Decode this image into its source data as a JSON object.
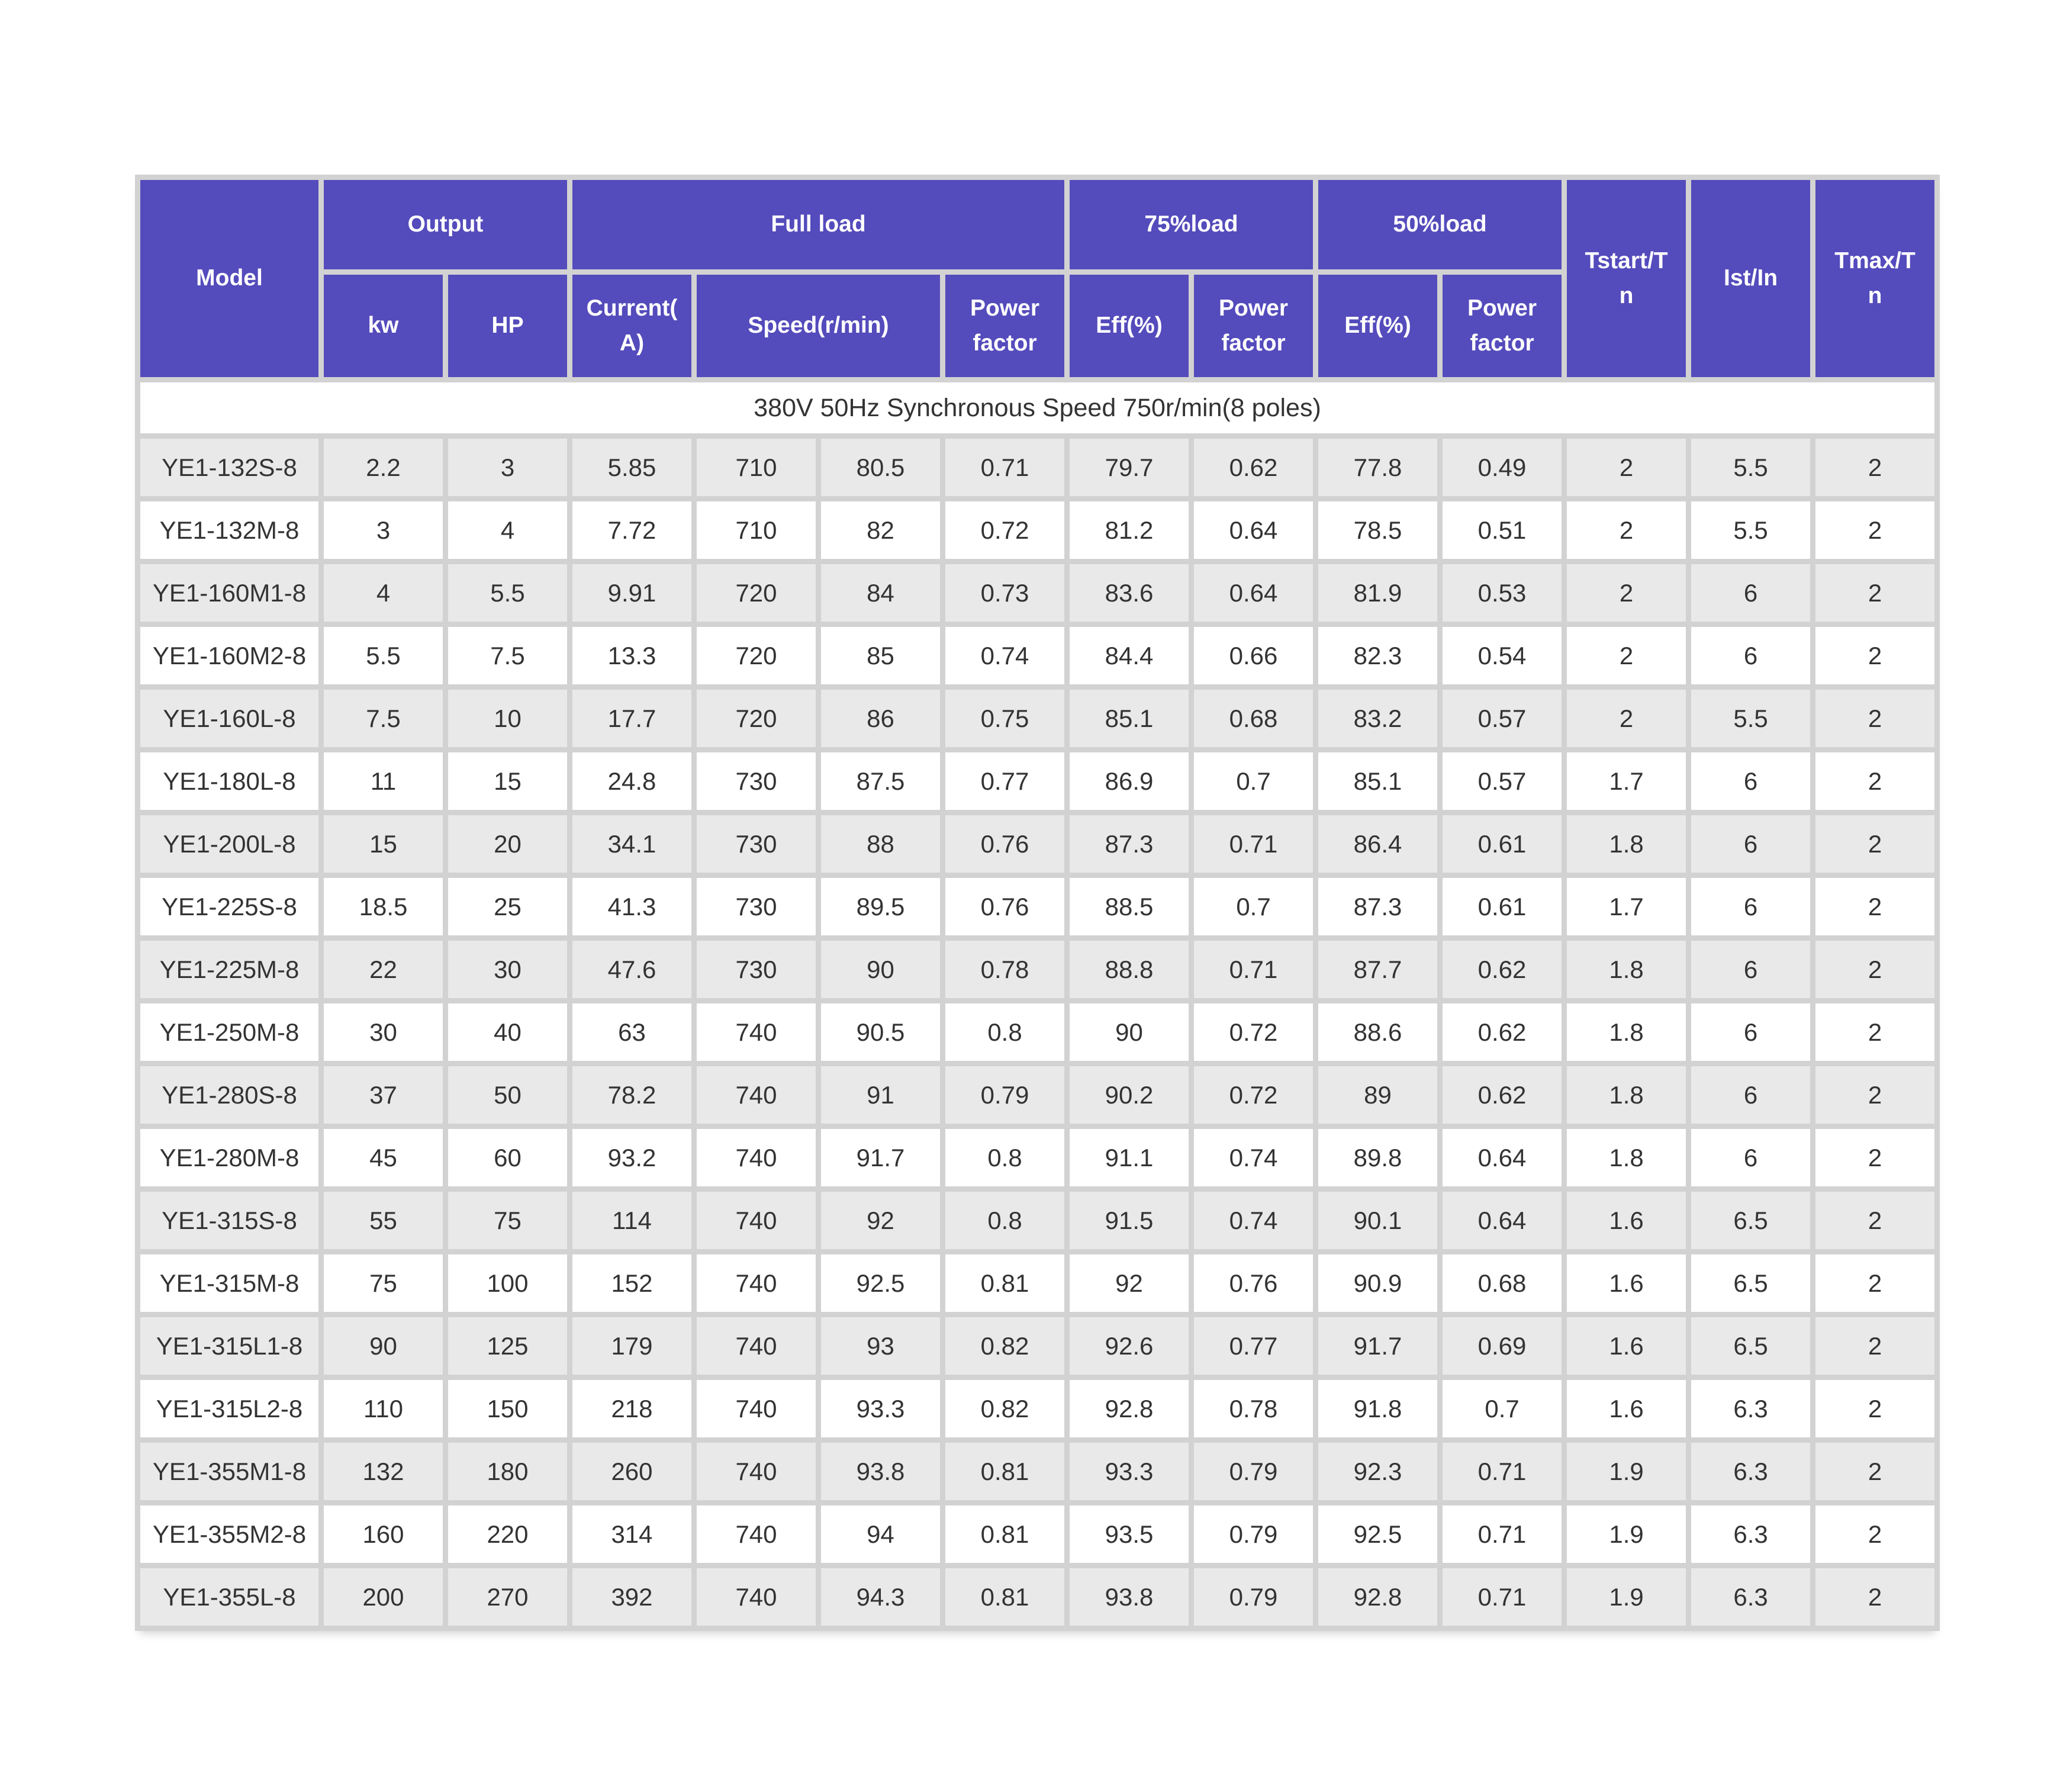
{
  "header": {
    "model": "Model",
    "output": "Output",
    "full_load": "Full load",
    "load75": "75%load",
    "load50": "50%load",
    "tstart": "Tstart/T\nn",
    "ist": "Ist/In",
    "tmax": "Tmax/T\nn",
    "kw": "kw",
    "hp": "HP",
    "current": "Current(\nA)",
    "speed": "Speed(r/min)",
    "power_factor": "Power\nfactor",
    "eff": "Eff(%)"
  },
  "subtitle": "380V 50Hz Synchronous Speed 750r/min(8 poles)",
  "colors": {
    "header_bg": "#544BBC",
    "header_text": "#ffffff",
    "border": "#d2d2d2",
    "alt_row_bg": "#e9e9e9",
    "row_bg": "#ffffff",
    "text": "#333333"
  },
  "chart_data": {
    "type": "table",
    "title": "380V 50Hz Synchronous Speed 750r/min(8 poles)",
    "column_groups": [
      "Model",
      "Output",
      "Full load",
      "75%load",
      "50%load",
      "Tstart/Tn",
      "Ist/In",
      "Tmax/Tn"
    ],
    "columns": [
      "Model",
      "kw",
      "HP",
      "Current(A)",
      "Speed(r/min)",
      "Eff(%)",
      "Power factor",
      "Eff(%)",
      "Power factor",
      "Eff(%)",
      "Power factor",
      "Tstart/Tn",
      "Ist/In",
      "Tmax/Tn"
    ],
    "rows": [
      [
        "YE1-132S-8",
        "2.2",
        "3",
        "5.85",
        "710",
        "80.5",
        "0.71",
        "79.7",
        "0.62",
        "77.8",
        "0.49",
        "2",
        "5.5",
        "2"
      ],
      [
        "YE1-132M-8",
        "3",
        "4",
        "7.72",
        "710",
        "82",
        "0.72",
        "81.2",
        "0.64",
        "78.5",
        "0.51",
        "2",
        "5.5",
        "2"
      ],
      [
        "YE1-160M1-8",
        "4",
        "5.5",
        "9.91",
        "720",
        "84",
        "0.73",
        "83.6",
        "0.64",
        "81.9",
        "0.53",
        "2",
        "6",
        "2"
      ],
      [
        "YE1-160M2-8",
        "5.5",
        "7.5",
        "13.3",
        "720",
        "85",
        "0.74",
        "84.4",
        "0.66",
        "82.3",
        "0.54",
        "2",
        "6",
        "2"
      ],
      [
        "YE1-160L-8",
        "7.5",
        "10",
        "17.7",
        "720",
        "86",
        "0.75",
        "85.1",
        "0.68",
        "83.2",
        "0.57",
        "2",
        "5.5",
        "2"
      ],
      [
        "YE1-180L-8",
        "11",
        "15",
        "24.8",
        "730",
        "87.5",
        "0.77",
        "86.9",
        "0.7",
        "85.1",
        "0.57",
        "1.7",
        "6",
        "2"
      ],
      [
        "YE1-200L-8",
        "15",
        "20",
        "34.1",
        "730",
        "88",
        "0.76",
        "87.3",
        "0.71",
        "86.4",
        "0.61",
        "1.8",
        "6",
        "2"
      ],
      [
        "YE1-225S-8",
        "18.5",
        "25",
        "41.3",
        "730",
        "89.5",
        "0.76",
        "88.5",
        "0.7",
        "87.3",
        "0.61",
        "1.7",
        "6",
        "2"
      ],
      [
        "YE1-225M-8",
        "22",
        "30",
        "47.6",
        "730",
        "90",
        "0.78",
        "88.8",
        "0.71",
        "87.7",
        "0.62",
        "1.8",
        "6",
        "2"
      ],
      [
        "YE1-250M-8",
        "30",
        "40",
        "63",
        "740",
        "90.5",
        "0.8",
        "90",
        "0.72",
        "88.6",
        "0.62",
        "1.8",
        "6",
        "2"
      ],
      [
        "YE1-280S-8",
        "37",
        "50",
        "78.2",
        "740",
        "91",
        "0.79",
        "90.2",
        "0.72",
        "89",
        "0.62",
        "1.8",
        "6",
        "2"
      ],
      [
        "YE1-280M-8",
        "45",
        "60",
        "93.2",
        "740",
        "91.7",
        "0.8",
        "91.1",
        "0.74",
        "89.8",
        "0.64",
        "1.8",
        "6",
        "2"
      ],
      [
        "YE1-315S-8",
        "55",
        "75",
        "114",
        "740",
        "92",
        "0.8",
        "91.5",
        "0.74",
        "90.1",
        "0.64",
        "1.6",
        "6.5",
        "2"
      ],
      [
        "YE1-315M-8",
        "75",
        "100",
        "152",
        "740",
        "92.5",
        "0.81",
        "92",
        "0.76",
        "90.9",
        "0.68",
        "1.6",
        "6.5",
        "2"
      ],
      [
        "YE1-315L1-8",
        "90",
        "125",
        "179",
        "740",
        "93",
        "0.82",
        "92.6",
        "0.77",
        "91.7",
        "0.69",
        "1.6",
        "6.5",
        "2"
      ],
      [
        "YE1-315L2-8",
        "110",
        "150",
        "218",
        "740",
        "93.3",
        "0.82",
        "92.8",
        "0.78",
        "91.8",
        "0.7",
        "1.6",
        "6.3",
        "2"
      ],
      [
        "YE1-355M1-8",
        "132",
        "180",
        "260",
        "740",
        "93.8",
        "0.81",
        "93.3",
        "0.79",
        "92.3",
        "0.71",
        "1.9",
        "6.3",
        "2"
      ],
      [
        "YE1-355M2-8",
        "160",
        "220",
        "314",
        "740",
        "94",
        "0.81",
        "93.5",
        "0.79",
        "92.5",
        "0.71",
        "1.9",
        "6.3",
        "2"
      ],
      [
        "YE1-355L-8",
        "200",
        "270",
        "392",
        "740",
        "94.3",
        "0.81",
        "93.8",
        "0.79",
        "92.8",
        "0.71",
        "1.9",
        "6.3",
        "2"
      ]
    ]
  }
}
